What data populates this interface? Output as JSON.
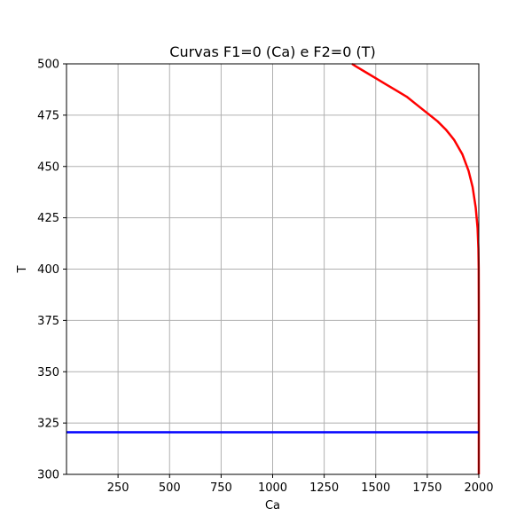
{
  "chart_data": {
    "type": "line",
    "title": "Curvas F1=0 (Ca) e F2=0 (T)",
    "xlabel": "Ca",
    "ylabel": "T",
    "xlim": [
      0,
      2000
    ],
    "ylim": [
      300,
      500
    ],
    "xticks": [
      250,
      500,
      750,
      1000,
      1250,
      1500,
      1750,
      2000
    ],
    "yticks": [
      300,
      325,
      350,
      375,
      400,
      425,
      450,
      475,
      500
    ],
    "grid": true,
    "series": [
      {
        "color": "#ff0000",
        "x": [
          2000,
          2000,
          1999.5,
          1998,
          1994,
          1985,
          1970,
          1950,
          1920,
          1880,
          1840,
          1800,
          1750,
          1700,
          1650,
          1600,
          1550,
          1500,
          1450,
          1400,
          1385
        ],
        "y": [
          300,
          380,
          400,
          410,
          420,
          430,
          440,
          448,
          456,
          463,
          468,
          472,
          476,
          480,
          484,
          487,
          490,
          493,
          496,
          499,
          500
        ]
      },
      {
        "color": "#0000ff",
        "x": [
          0,
          2000
        ],
        "y": [
          320.5,
          320.5
        ]
      }
    ]
  }
}
